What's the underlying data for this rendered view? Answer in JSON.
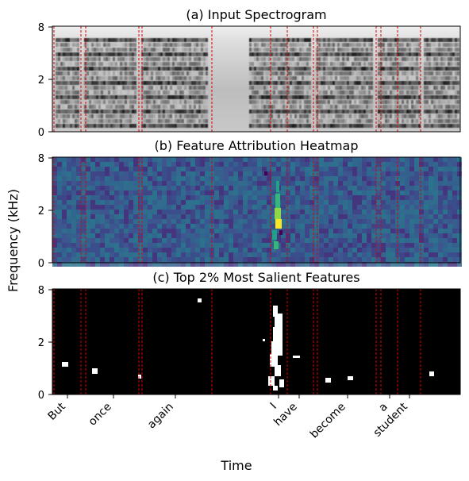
{
  "figure": {
    "ylabel": "Frequency (kHz)",
    "xlabel": "Time"
  },
  "chart_data": [
    {
      "type": "heatmap",
      "title": "(a) Input Spectrogram",
      "yticks": [
        "8",
        "2",
        "0"
      ],
      "colormap": "gray-reversed"
    },
    {
      "type": "heatmap",
      "title": "(b) Feature Attribution Heatmap",
      "yticks": [
        "8",
        "2",
        "0"
      ],
      "colormap": "viridis"
    },
    {
      "type": "heatmap",
      "title": "(c) Top 2% Most Salient Features",
      "yticks": [
        "8",
        "2",
        "0"
      ],
      "colormap": "binary-on-black"
    }
  ],
  "word_boundaries_color": "#dd0000",
  "words": [
    "But",
    "once",
    "again",
    "I",
    "have",
    "become",
    "a",
    "student"
  ]
}
